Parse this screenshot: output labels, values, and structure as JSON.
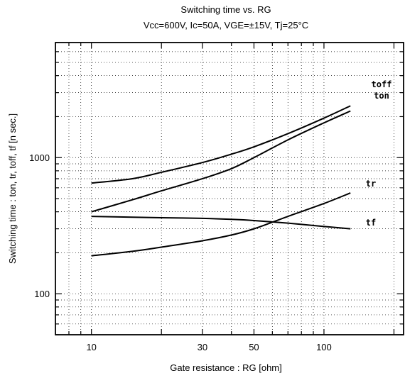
{
  "chart_data": {
    "type": "line",
    "title": "Switching time  vs.  RG",
    "subtitle": "Vcc=600V, Ic=50A, VGE=±15V, Tj=25°C",
    "xlabel": "Gate  resistance  :  RG [ohm]",
    "ylabel": "Switching time  :  ton, tr, toff, tf  [n sec.]",
    "x_scale": "log",
    "y_scale": "log",
    "xlim": [
      7,
      220
    ],
    "ylim": [
      50,
      7000
    ],
    "x_ticks": [
      10,
      30,
      50,
      100
    ],
    "x_tick_labels": [
      "10",
      "30",
      "50",
      "100"
    ],
    "y_ticks": [
      100,
      1000
    ],
    "y_tick_labels": [
      "100",
      "1000"
    ],
    "grid": true,
    "series": [
      {
        "name": "toff",
        "x": [
          10,
          15,
          20,
          30,
          40,
          50,
          70,
          100,
          130
        ],
        "y": [
          650,
          700,
          780,
          920,
          1060,
          1200,
          1500,
          1950,
          2400
        ]
      },
      {
        "name": "ton",
        "x": [
          10,
          15,
          20,
          30,
          40,
          50,
          70,
          100,
          130
        ],
        "y": [
          400,
          490,
          570,
          700,
          830,
          1000,
          1350,
          1800,
          2200
        ]
      },
      {
        "name": "tr",
        "x": [
          10,
          15,
          20,
          30,
          40,
          50,
          70,
          100,
          130
        ],
        "y": [
          190,
          205,
          220,
          245,
          270,
          300,
          370,
          460,
          550
        ]
      },
      {
        "name": "tf",
        "x": [
          10,
          15,
          20,
          30,
          40,
          50,
          70,
          100,
          130
        ],
        "y": [
          370,
          365,
          362,
          358,
          352,
          345,
          330,
          312,
          300
        ]
      }
    ]
  }
}
